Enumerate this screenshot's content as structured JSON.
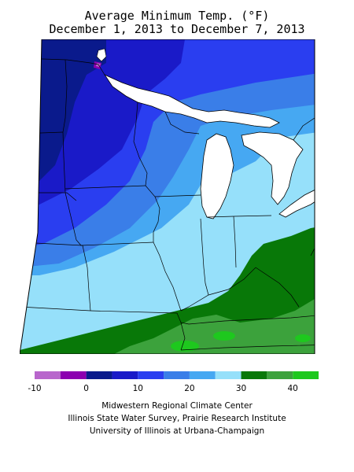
{
  "title": {
    "line1": "Average Minimum Temp. (°F)",
    "line2": "December 1, 2013 to December 7, 2013"
  },
  "legend": {
    "bins": [
      {
        "from": -10,
        "to": -5,
        "color": "#b866cc"
      },
      {
        "from": -5,
        "to": 0,
        "color": "#8c00b0"
      },
      {
        "from": 0,
        "to": 5,
        "color": "#0a1a8c"
      },
      {
        "from": 5,
        "to": 10,
        "color": "#1a1ac8"
      },
      {
        "from": 10,
        "to": 15,
        "color": "#2a3ef0"
      },
      {
        "from": 15,
        "to": 20,
        "color": "#3a7ee8"
      },
      {
        "from": 20,
        "to": 25,
        "color": "#46a8f2"
      },
      {
        "from": 25,
        "to": 30,
        "color": "#96e0fa"
      },
      {
        "from": 30,
        "to": 35,
        "color": "#087808"
      },
      {
        "from": 35,
        "to": 40,
        "color": "#3ca23c"
      },
      {
        "from": 40,
        "to": 45,
        "color": "#1ec81e"
      }
    ],
    "tick_labels": [
      "-10",
      "0",
      "10",
      "20",
      "30",
      "40"
    ]
  },
  "credits": {
    "line1": "Midwestern Regional Climate Center",
    "line2": "Illinois State Water Survey, Prairie Research Institute",
    "line3": "University of Illinois at Urbana-Champaign"
  },
  "colors": {
    "lake": "#ffffff",
    "border": "#000000"
  }
}
